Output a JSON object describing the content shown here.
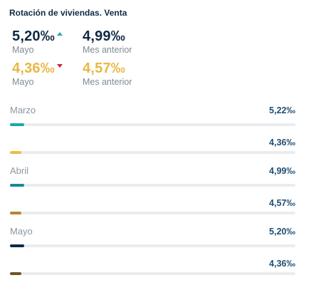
{
  "title": "Rotación de viviendas. Venta",
  "kpis": {
    "current_navy": {
      "value": "5,20‰",
      "label": "Mayo",
      "trend": "up"
    },
    "previous_navy": {
      "value": "4,99‰",
      "label": "Mes anterior"
    },
    "current_gold": {
      "value": "4,36‰",
      "label": "Mayo",
      "trend": "down"
    },
    "previous_gold": {
      "value": "4,57‰",
      "label": "Mes anterior"
    }
  },
  "colors": {
    "navy": "#0f2a44",
    "gold": "#e9b842",
    "trend_up": "#2aa7aa",
    "trend_down": "#c8252c"
  },
  "months": [
    {
      "name": "Marzo",
      "rows": [
        {
          "value_label": "5,22‰",
          "fraction": 0.05,
          "color": "#19a7ab"
        },
        {
          "value_label": "4,36‰",
          "fraction": 0.04,
          "color": "#f0bd3c"
        }
      ]
    },
    {
      "name": "Abril",
      "rows": [
        {
          "value_label": "4,99‰",
          "fraction": 0.05,
          "color": "#16899a"
        },
        {
          "value_label": "4,57‰",
          "fraction": 0.04,
          "color": "#b08a2a"
        }
      ]
    },
    {
      "name": "Mayo",
      "rows": [
        {
          "value_label": "5,20‰",
          "fraction": 0.05,
          "color": "#0f2a44"
        },
        {
          "value_label": "4,36‰",
          "fraction": 0.04,
          "color": "#6e5520"
        }
      ]
    }
  ]
}
